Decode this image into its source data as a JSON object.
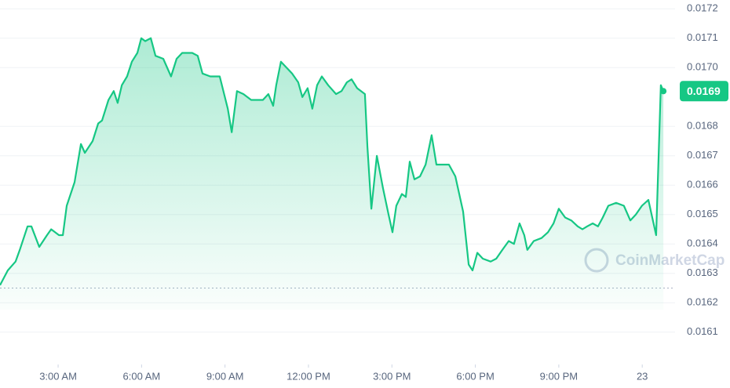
{
  "chart_data": {
    "type": "line",
    "color": "#16c784",
    "x": [
      0.91,
      1.19,
      1.47,
      1.62,
      1.9,
      2.04,
      2.32,
      2.6,
      2.75,
      3.03,
      3.17,
      3.31,
      3.59,
      3.82,
      3.96,
      4.24,
      4.44,
      4.58,
      4.81,
      5.0,
      5.14,
      5.29,
      5.48,
      5.65,
      5.85,
      5.99,
      6.13,
      6.33,
      6.5,
      6.78,
      7.06,
      7.26,
      7.46,
      7.82,
      8.02,
      8.19,
      8.47,
      8.81,
      9.1,
      9.24,
      9.43,
      9.66,
      9.94,
      10.36,
      10.56,
      10.73,
      10.84,
      11.01,
      11.21,
      11.41,
      11.63,
      11.78,
      11.97,
      12.14,
      12.31,
      12.48,
      12.71,
      12.99,
      13.19,
      13.38,
      13.55,
      13.75,
      14.03,
      14.12,
      14.26,
      14.46,
      14.68,
      14.88,
      15.02,
      15.16,
      15.36,
      15.5,
      15.64,
      15.81,
      16.01,
      16.21,
      16.43,
      16.6,
      16.77,
      17.05,
      17.28,
      17.56,
      17.76,
      17.9,
      18.07,
      18.27,
      18.55,
      18.75,
      18.97,
      19.2,
      19.39,
      19.59,
      19.76,
      19.87,
      20.1,
      20.38,
      20.61,
      20.81,
      21.0,
      21.23,
      21.45,
      21.68,
      21.85,
      22.02,
      22.22,
      22.41,
      22.58,
      22.78,
      23.06,
      23.34,
      23.57,
      23.77,
      23.99,
      24.22,
      24.5,
      24.67,
      24.76
    ],
    "values": [
      0.01626,
      0.01631,
      0.01634,
      0.01638,
      0.01646,
      0.01646,
      0.01639,
      0.01643,
      0.01645,
      0.01643,
      0.01643,
      0.01653,
      0.01661,
      0.01674,
      0.01671,
      0.01675,
      0.01681,
      0.01682,
      0.01689,
      0.01692,
      0.01688,
      0.01694,
      0.01697,
      0.01702,
      0.01705,
      0.0171,
      0.01709,
      0.0171,
      0.01704,
      0.01703,
      0.01697,
      0.01703,
      0.01705,
      0.01705,
      0.01704,
      0.01698,
      0.01697,
      0.01697,
      0.01686,
      0.01678,
      0.01692,
      0.01691,
      0.01689,
      0.01689,
      0.01691,
      0.01687,
      0.01694,
      0.01702,
      0.017,
      0.01698,
      0.01695,
      0.0169,
      0.01693,
      0.01686,
      0.01694,
      0.01697,
      0.01694,
      0.01691,
      0.01692,
      0.01695,
      0.01696,
      0.01693,
      0.01691,
      0.01673,
      0.01652,
      0.0167,
      0.01659,
      0.0165,
      0.01644,
      0.01653,
      0.01657,
      0.01656,
      0.01668,
      0.01662,
      0.01663,
      0.01667,
      0.01677,
      0.01667,
      0.01667,
      0.01667,
      0.01663,
      0.01651,
      0.01633,
      0.01631,
      0.01637,
      0.01635,
      0.01634,
      0.01635,
      0.01638,
      0.01641,
      0.0164,
      0.01647,
      0.01643,
      0.01638,
      0.01641,
      0.01642,
      0.01644,
      0.01647,
      0.01652,
      0.01649,
      0.01648,
      0.01646,
      0.01645,
      0.01646,
      0.01647,
      0.01646,
      0.01649,
      0.01653,
      0.01654,
      0.01653,
      0.01648,
      0.0165,
      0.01653,
      0.01655,
      0.01643,
      0.01694,
      0.01692
    ],
    "last_label": "0.0169",
    "baseline": 0.01625,
    "xlim": [
      0.91,
      25.18
    ],
    "xticks": [
      {
        "value": 3,
        "label": "3:00 AM"
      },
      {
        "value": 6,
        "label": "6:00 AM"
      },
      {
        "value": 9,
        "label": "9:00 AM"
      },
      {
        "value": 12,
        "label": "12:00 PM"
      },
      {
        "value": 15,
        "label": "3:00 PM"
      },
      {
        "value": 18,
        "label": "6:00 PM"
      },
      {
        "value": 21,
        "label": "9:00 PM"
      },
      {
        "value": 24,
        "label": "23"
      }
    ],
    "ylim": [
      0.01599,
      0.01723
    ],
    "yticks": [
      0.0172,
      0.0171,
      0.017,
      0.0168,
      0.0167,
      0.0166,
      0.0165,
      0.0164,
      0.0163,
      0.0162,
      0.0161
    ],
    "ytick_labels": [
      "0.0172",
      "0.0171",
      "0.0170",
      "0.0168",
      "0.0167",
      "0.0166",
      "0.0165",
      "0.0164",
      "0.0163",
      "0.0162",
      "0.0161"
    ],
    "grid": true,
    "watermark": "CoinMarketCap"
  }
}
